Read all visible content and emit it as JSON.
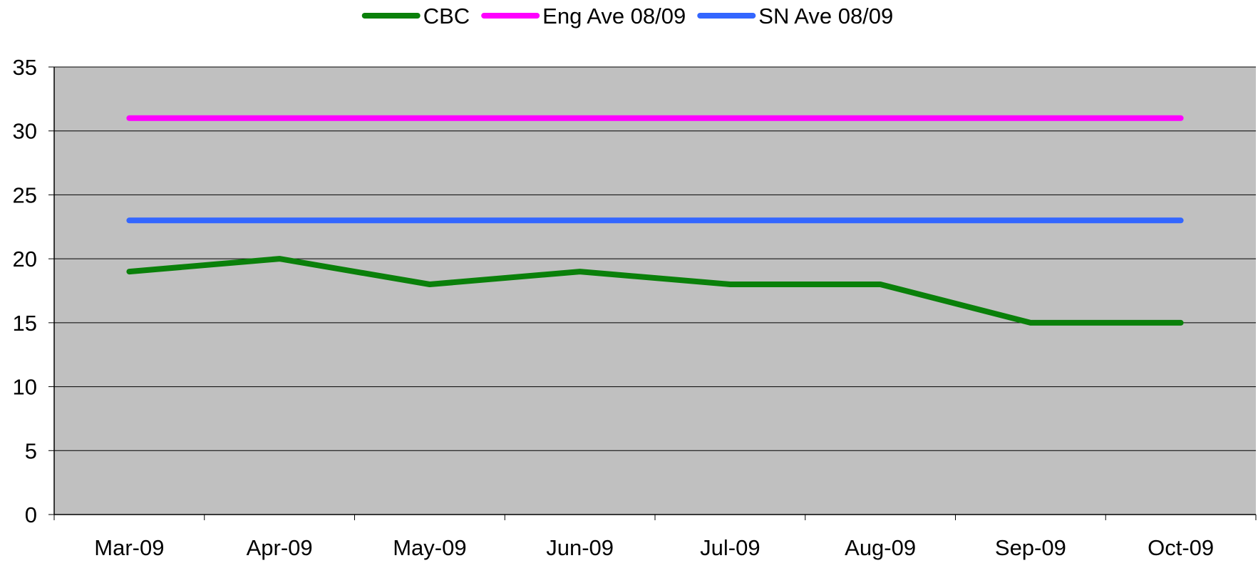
{
  "chart_data": {
    "type": "line",
    "title": "",
    "xlabel": "",
    "ylabel": "",
    "categories": [
      "Mar-09",
      "Apr-09",
      "May-09",
      "Jun-09",
      "Jul-09",
      "Aug-09",
      "Sep-09",
      "Oct-09"
    ],
    "ylim": [
      0,
      35
    ],
    "yticks": [
      0,
      5,
      10,
      15,
      20,
      25,
      30,
      35
    ],
    "grid": true,
    "legend_position": "top",
    "background_color": "#c0c0c0",
    "series": [
      {
        "name": "CBC",
        "color": "#0a800a",
        "values": [
          19,
          20,
          18,
          19,
          18,
          18,
          15,
          15
        ]
      },
      {
        "name": "Eng Ave 08/09",
        "color": "#ff00ff",
        "values": [
          31,
          31,
          31,
          31,
          31,
          31,
          31,
          31
        ]
      },
      {
        "name": "SN Ave 08/09",
        "color": "#3366ff",
        "values": [
          23,
          23,
          23,
          23,
          23,
          23,
          23,
          23
        ]
      }
    ]
  }
}
